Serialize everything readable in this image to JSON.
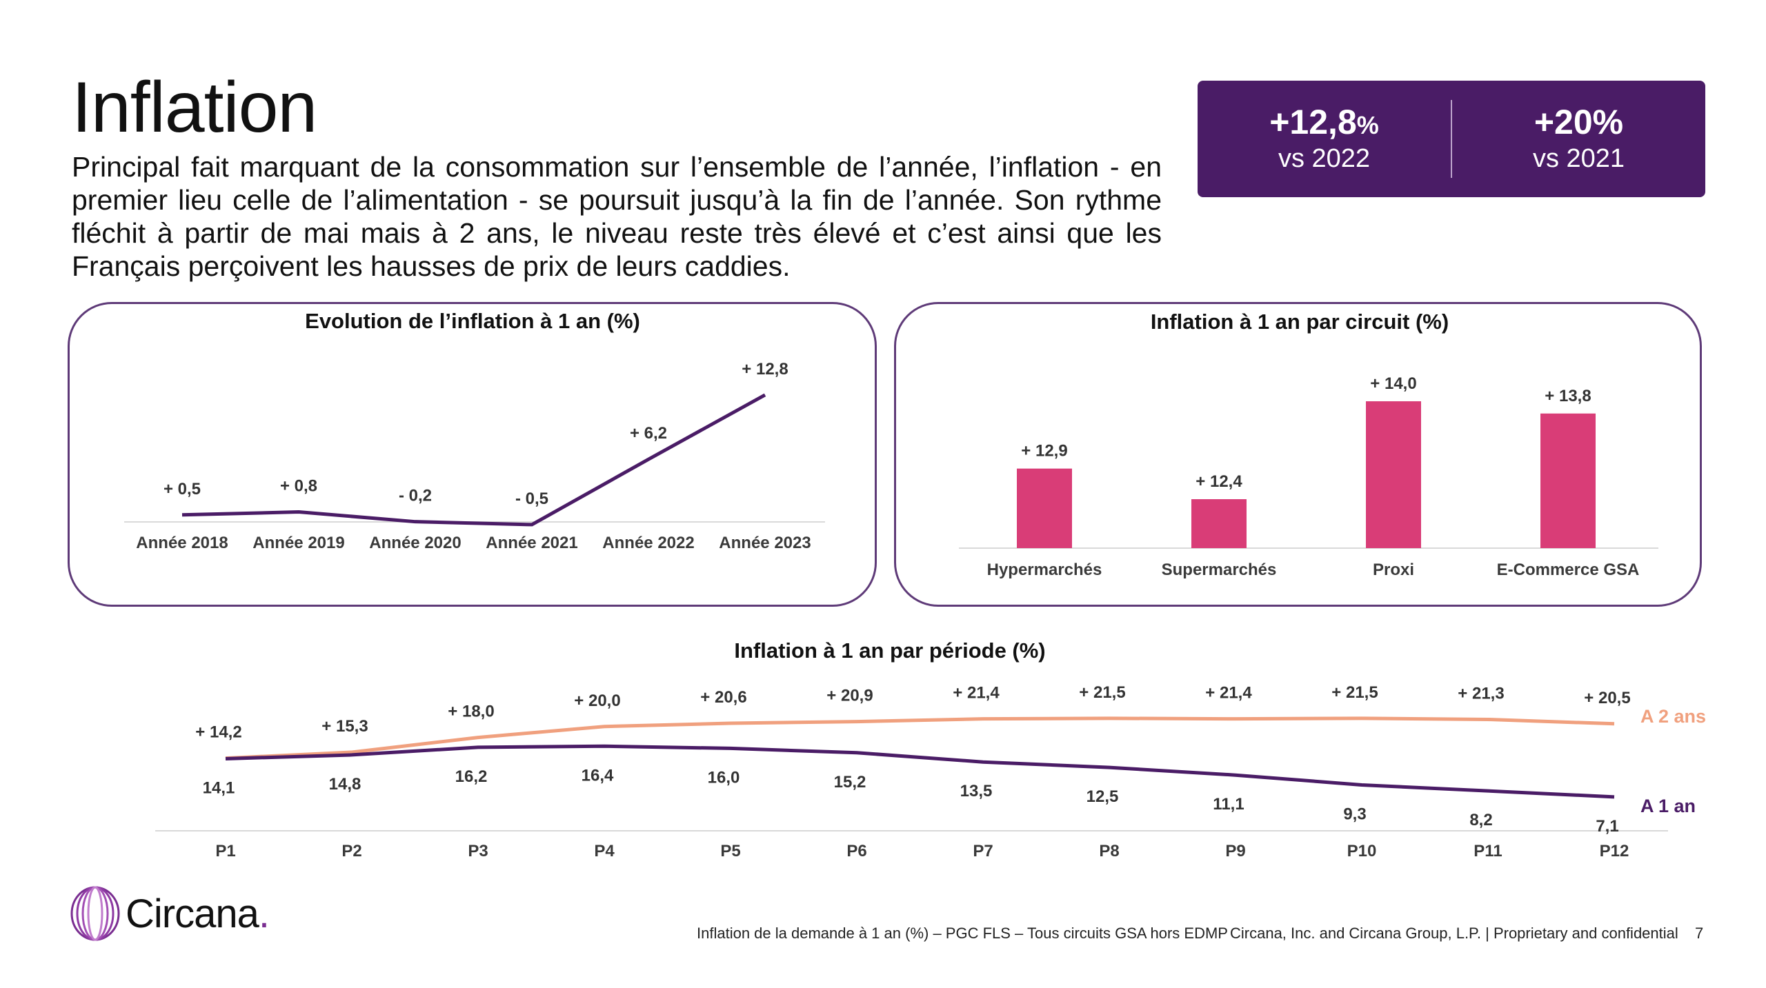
{
  "header": {
    "title": "Inflation",
    "intro": "Principal fait marquant de la consommation sur l’ensemble de l’année, l’inflation - en premier lieu celle de l’alimentation - se poursuit jusqu’à la fin de l’année. Son rythme fléchit à partir de mai mais à 2 ans, le niveau reste très élevé et c’est ainsi que les Français perçoivent les hausses de prix de leurs caddies."
  },
  "kpis": [
    {
      "value": "+12,8",
      "unit": "%",
      "sub": "vs 2022"
    },
    {
      "value": "+20%",
      "unit": "",
      "sub": "vs 2021"
    }
  ],
  "colors": {
    "purple": "#4a1c66",
    "pink": "#d93d77",
    "orange": "#f0a07e",
    "axis": "#d9d9d9"
  },
  "chart_data": [
    {
      "type": "line",
      "title": "Evolution de l’inflation à 1 an (%)",
      "categories": [
        "Année 2018",
        "Année 2019",
        "Année 2020",
        "Année 2021",
        "Année 2022",
        "Année 2023"
      ],
      "values": [
        0.5,
        0.8,
        -0.2,
        -0.5,
        6.2,
        12.8
      ],
      "labels": [
        "+ 0,5",
        "+ 0,8",
        "- 0,2",
        "- 0,5",
        "+ 6,2",
        "+ 12,8"
      ],
      "ylim": [
        -1,
        13
      ]
    },
    {
      "type": "bar",
      "title": "Inflation à 1 an par circuit (%)",
      "categories": [
        "Hypermarchés",
        "Supermarchés",
        "Proxi",
        "E-Commerce GSA"
      ],
      "values": [
        12.9,
        12.4,
        14.0,
        13.8
      ],
      "labels": [
        "+ 12,9",
        "+ 12,4",
        "+ 14,0",
        "+ 13,8"
      ],
      "ylim": [
        11.6,
        14.0
      ]
    },
    {
      "type": "line",
      "title": "Inflation à 1 an par période (%)",
      "categories": [
        "P1",
        "P2",
        "P3",
        "P4",
        "P5",
        "P6",
        "P7",
        "P8",
        "P9",
        "P10",
        "P11",
        "P12"
      ],
      "series": [
        {
          "name": "A 2 ans",
          "values": [
            14.2,
            15.3,
            18.0,
            20.0,
            20.6,
            20.9,
            21.4,
            21.5,
            21.4,
            21.5,
            21.3,
            20.5
          ],
          "labels": [
            "+ 14,2",
            "+ 15,3",
            "+ 18,0",
            "+ 20,0",
            "+ 20,6",
            "+ 20,9",
            "+ 21,4",
            "+ 21,5",
            "+ 21,4",
            "+ 21,5",
            "+ 21,3",
            "+ 20,5"
          ]
        },
        {
          "name": "A 1 an",
          "values": [
            14.1,
            14.8,
            16.2,
            16.4,
            16.0,
            15.2,
            13.5,
            12.5,
            11.1,
            9.3,
            8.2,
            7.1
          ],
          "labels": [
            "14,1",
            "14,8",
            "16,2",
            "16,4",
            "16,0",
            "15,2",
            "13,5",
            "12,5",
            "11,1",
            "9,3",
            "8,2",
            "7,1"
          ]
        }
      ],
      "ylim": [
        -1,
        23
      ]
    }
  ],
  "footer": {
    "source": "Inflation de la demande à 1 an (%) – PGC FLS – Tous circuits GSA hors EDMP",
    "legal": "Circana, Inc. and Circana Group, L.P. |  Proprietary and confidential",
    "page": "7"
  },
  "logo": {
    "text": "Circana",
    "dot": "."
  }
}
